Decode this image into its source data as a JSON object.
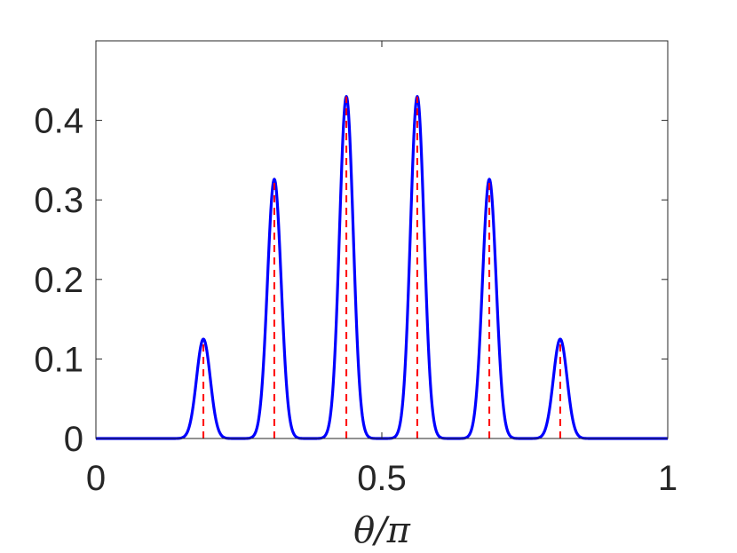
{
  "chart_data": {
    "type": "line",
    "title": "",
    "xlabel": "θ/π",
    "ylabel": "",
    "xlim": [
      0,
      1
    ],
    "ylim": [
      0,
      0.5
    ],
    "grid": false,
    "x_ticks": [
      0,
      0.5,
      1
    ],
    "x_tick_labels": [
      "0",
      "0.5",
      "1"
    ],
    "y_ticks": [
      0,
      0.1,
      0.2,
      0.3,
      0.4
    ],
    "y_tick_labels": [
      "0",
      "0.1",
      "0.2",
      "0.3",
      "0.4"
    ],
    "peak_width": 0.012,
    "series": [
      {
        "kind": "curve",
        "style": "solid",
        "color": "#0000ff",
        "peaks": [
          {
            "x": 0.188,
            "y": 0.125
          },
          {
            "x": 0.312,
            "y": 0.326
          },
          {
            "x": 0.438,
            "y": 0.43
          },
          {
            "x": 0.562,
            "y": 0.43
          },
          {
            "x": 0.688,
            "y": 0.326
          },
          {
            "x": 0.812,
            "y": 0.125
          }
        ]
      },
      {
        "kind": "stems",
        "style": "dashed",
        "color": "#ff0000",
        "x": [
          0.188,
          0.312,
          0.438,
          0.562,
          0.688,
          0.812
        ],
        "y": [
          0.125,
          0.326,
          0.43,
          0.43,
          0.326,
          0.125
        ]
      }
    ]
  }
}
